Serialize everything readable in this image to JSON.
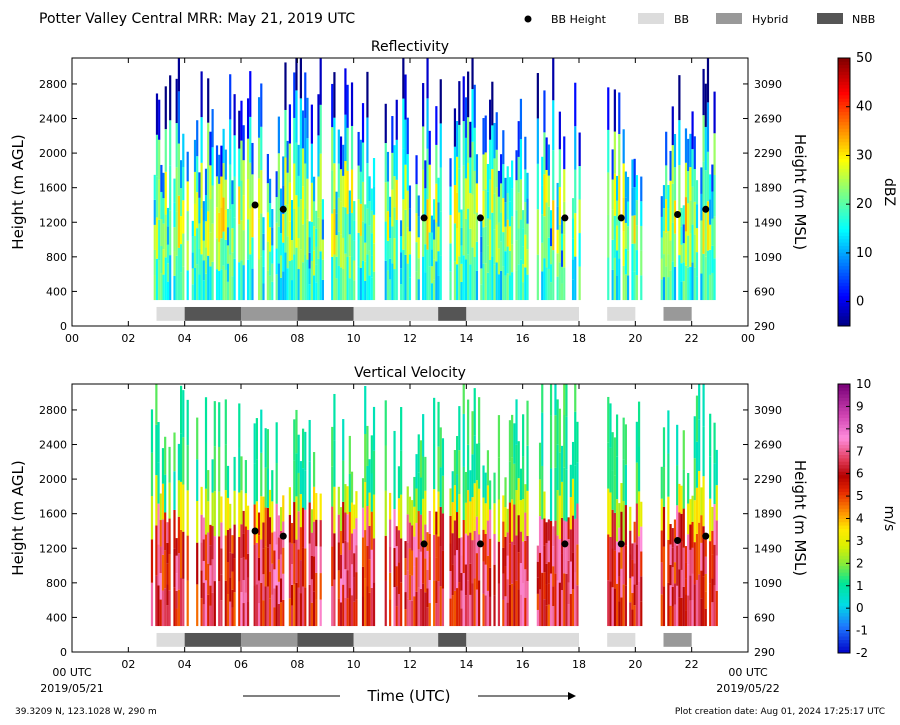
{
  "header": {
    "title": "Potter Valley Central MRR:  May 21, 2019 UTC",
    "legend": [
      {
        "label": "BB Height",
        "kind": "dot",
        "color": "#000000"
      },
      {
        "label": "BB",
        "kind": "box",
        "color": "#dcdcdc"
      },
      {
        "label": "Hybrid",
        "kind": "box",
        "color": "#999999"
      },
      {
        "label": "NBB",
        "kind": "box",
        "color": "#555555"
      }
    ]
  },
  "footer": {
    "location": "39.3209 N, 123.1028 W, 290 m",
    "creation": "Plot creation date: Aug 01, 2024 17:25:17 UTC",
    "xlabel": "Time (UTC)",
    "start_utc": "00 UTC",
    "end_utc": "00 UTC",
    "start_date": "2019/05/21",
    "end_date": "2019/05/22"
  },
  "colors": {
    "bb": "#dcdcdc",
    "hybrid": "#999999",
    "nbb": "#555555"
  },
  "chart_data": [
    {
      "type": "heatmap",
      "title": "Reflectivity",
      "ylabel": "Height (m AGL)",
      "ylabel_right": "Height (m MSL)",
      "xlim": [
        0,
        24
      ],
      "ylim": [
        0,
        3100
      ],
      "x_ticks": [
        "00",
        "02",
        "04",
        "06",
        "08",
        "10",
        "12",
        "14",
        "16",
        "18",
        "20",
        "22",
        "00"
      ],
      "y_ticks": [
        0,
        400,
        800,
        1200,
        1600,
        2000,
        2400,
        2800
      ],
      "y_ticks_right": [
        290,
        690,
        1090,
        1490,
        1890,
        2290,
        2690,
        3090
      ],
      "colorbar": {
        "label": "dBZ",
        "min": -5,
        "max": 50,
        "ticks": [
          0,
          10,
          20,
          30,
          40,
          50
        ],
        "colormap": "jet"
      },
      "echo_periods_utc": [
        [
          2.9,
          3.5
        ],
        [
          3.6,
          4.1
        ],
        [
          4.25,
          5.8
        ],
        [
          5.9,
          8.9
        ],
        [
          9.2,
          10.7
        ],
        [
          11.1,
          13.2
        ],
        [
          13.4,
          16.2
        ],
        [
          16.5,
          18.0
        ],
        [
          19.0,
          20.2
        ],
        [
          20.9,
          22.8
        ]
      ],
      "bb_height": [
        {
          "time": 6.5,
          "height": 1400
        },
        {
          "time": 7.5,
          "height": 1350
        },
        {
          "time": 12.5,
          "height": 1250
        },
        {
          "time": 14.5,
          "height": 1250
        },
        {
          "time": 17.5,
          "height": 1250
        },
        {
          "time": 19.5,
          "height": 1250
        },
        {
          "time": 21.5,
          "height": 1290
        },
        {
          "time": 22.5,
          "height": 1350
        }
      ],
      "classification": [
        {
          "start": 3,
          "end": 4,
          "class": "BB"
        },
        {
          "start": 4,
          "end": 6,
          "class": "NBB"
        },
        {
          "start": 6,
          "end": 8,
          "class": "Hybrid"
        },
        {
          "start": 8,
          "end": 10,
          "class": "NBB"
        },
        {
          "start": 10,
          "end": 13,
          "class": "BB"
        },
        {
          "start": 13,
          "end": 14,
          "class": "NBB"
        },
        {
          "start": 14,
          "end": 18,
          "class": "BB"
        },
        {
          "start": 19,
          "end": 20,
          "class": "BB"
        },
        {
          "start": 21,
          "end": 22,
          "class": "Hybrid"
        }
      ]
    },
    {
      "type": "heatmap",
      "title": "Vertical Velocity",
      "ylabel": "Height (m AGL)",
      "ylabel_right": "Height (m MSL)",
      "xlim": [
        0,
        24
      ],
      "ylim": [
        0,
        3100
      ],
      "x_ticks": [
        "",
        "02",
        "04",
        "06",
        "08",
        "10",
        "12",
        "14",
        "16",
        "18",
        "20",
        "22",
        ""
      ],
      "y_ticks": [
        0,
        400,
        800,
        1200,
        1600,
        2000,
        2400,
        2800
      ],
      "y_ticks_right": [
        290,
        690,
        1090,
        1490,
        1890,
        2290,
        2690,
        3090
      ],
      "colorbar": {
        "label": "m/s",
        "min": -2,
        "max": 10,
        "ticks": [
          -2,
          -1,
          0,
          1,
          2,
          3,
          4,
          5,
          6,
          7,
          8,
          9,
          10
        ],
        "colormap": "velocity"
      },
      "echo_periods_utc": [
        [
          2.8,
          3.5
        ],
        [
          3.6,
          4.1
        ],
        [
          4.25,
          5.8
        ],
        [
          5.9,
          8.9
        ],
        [
          9.2,
          10.7
        ],
        [
          11.1,
          13.2
        ],
        [
          13.4,
          16.2
        ],
        [
          16.5,
          18.0
        ],
        [
          19.0,
          20.2
        ],
        [
          20.9,
          22.9
        ]
      ],
      "bb_height": [
        {
          "time": 6.5,
          "height": 1400
        },
        {
          "time": 7.5,
          "height": 1340
        },
        {
          "time": 12.5,
          "height": 1250
        },
        {
          "time": 14.5,
          "height": 1250
        },
        {
          "time": 17.5,
          "height": 1250
        },
        {
          "time": 19.5,
          "height": 1250
        },
        {
          "time": 21.5,
          "height": 1290
        },
        {
          "time": 22.5,
          "height": 1340
        }
      ],
      "classification": [
        {
          "start": 3,
          "end": 4,
          "class": "BB"
        },
        {
          "start": 4,
          "end": 6,
          "class": "NBB"
        },
        {
          "start": 6,
          "end": 8,
          "class": "Hybrid"
        },
        {
          "start": 8,
          "end": 10,
          "class": "NBB"
        },
        {
          "start": 10,
          "end": 13,
          "class": "BB"
        },
        {
          "start": 13,
          "end": 14,
          "class": "NBB"
        },
        {
          "start": 14,
          "end": 18,
          "class": "BB"
        },
        {
          "start": 19,
          "end": 20,
          "class": "BB"
        },
        {
          "start": 21,
          "end": 22,
          "class": "Hybrid"
        }
      ]
    }
  ]
}
